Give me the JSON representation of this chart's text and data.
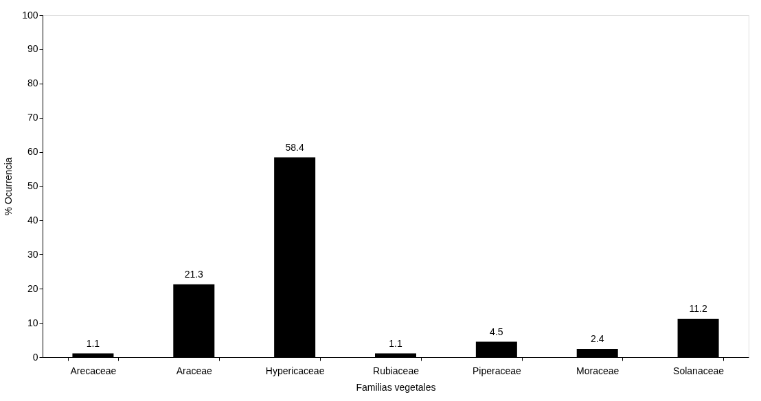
{
  "chart_data": {
    "type": "bar",
    "xlabel": "Familias vegetales",
    "ylabel": "% Ocurrencia",
    "categories": [
      "Arecaceae",
      "Araceae",
      "Hypericaceae",
      "Rubiaceae",
      "Piperaceae",
      "Moraceae",
      "Solanaceae"
    ],
    "values": [
      1.1,
      21.3,
      58.4,
      1.1,
      4.5,
      2.4,
      11.2
    ],
    "color": "#000000",
    "ylim": [
      0,
      100
    ],
    "yticks": [
      0,
      10,
      20,
      30,
      40,
      50,
      60,
      70,
      80,
      90,
      100
    ],
    "grid": false,
    "data_labels": true
  }
}
